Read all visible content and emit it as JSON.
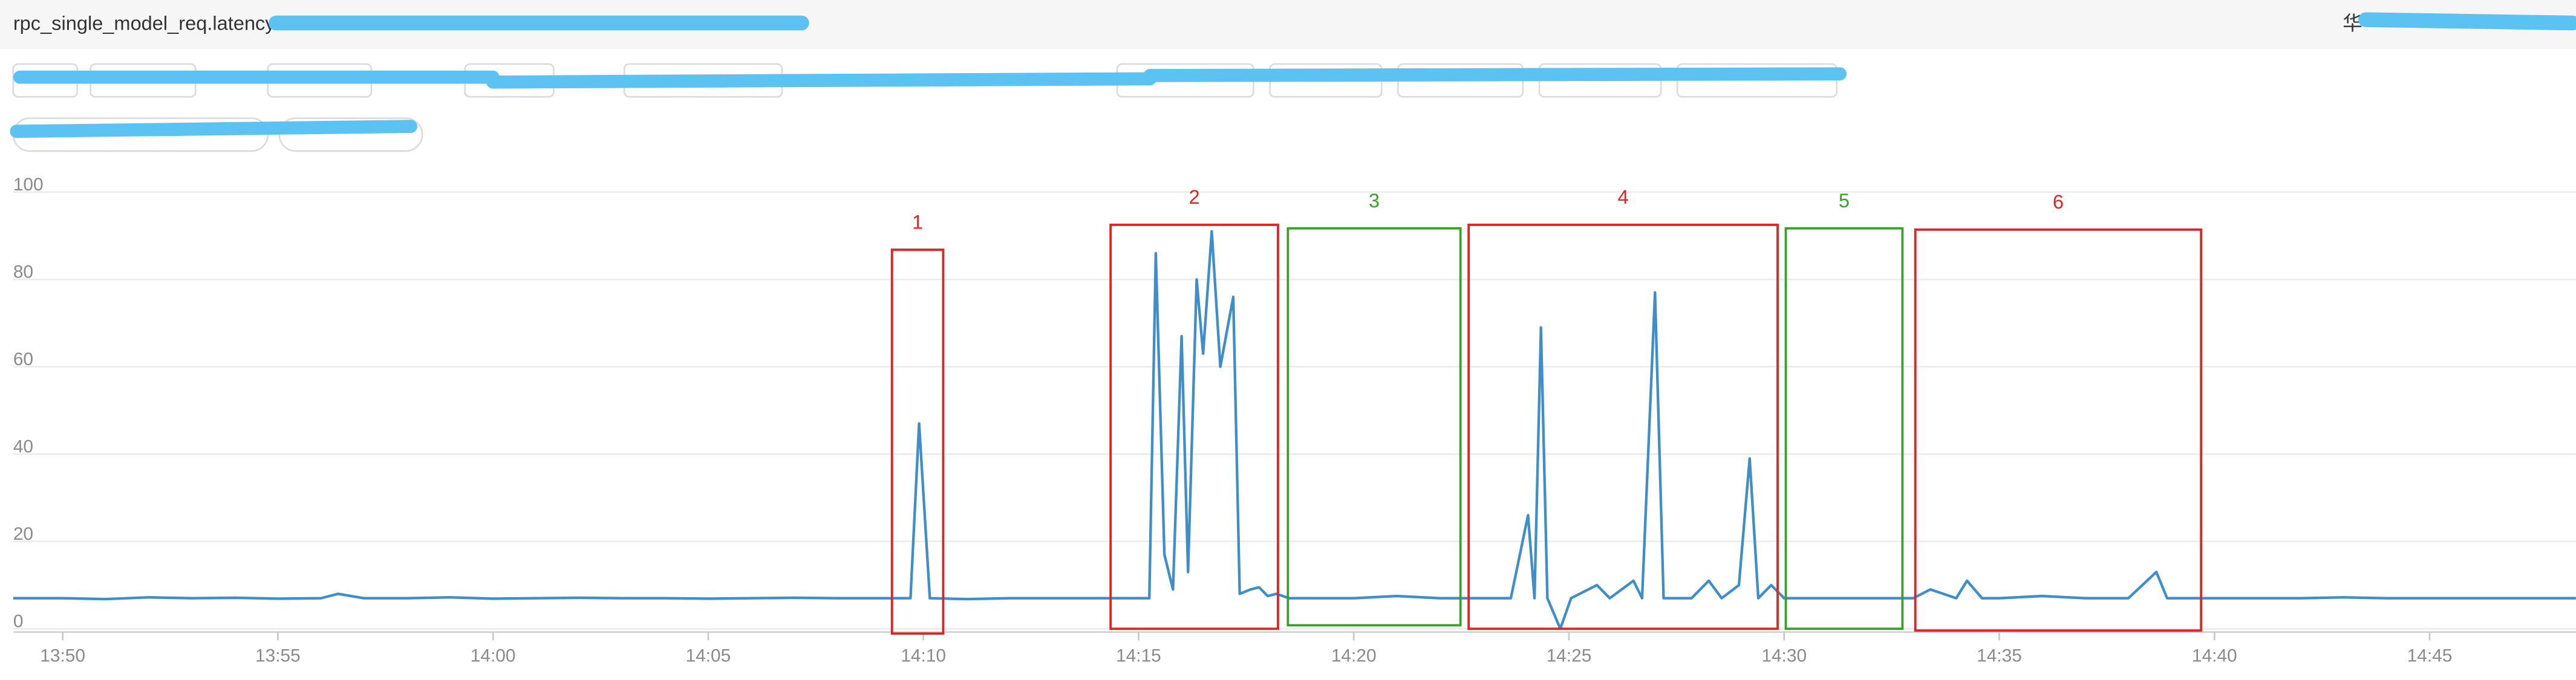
{
  "header": {
    "right_text": "华"
  },
  "chart_data": {
    "type": "line",
    "title": "rpc_single_model_req.latency",
    "color": "#3f8ec9",
    "grid": true,
    "xlim": [
      828.85,
      888.4
    ],
    "ylim": [
      0,
      100
    ],
    "yticks": [
      0,
      20,
      40,
      60,
      80,
      100
    ],
    "xticks": [
      {
        "value": 830,
        "label": "13:50"
      },
      {
        "value": 835,
        "label": "13:55"
      },
      {
        "value": 840,
        "label": "14:00"
      },
      {
        "value": 845,
        "label": "14:05"
      },
      {
        "value": 850,
        "label": "14:10"
      },
      {
        "value": 855,
        "label": "14:15"
      },
      {
        "value": 860,
        "label": "14:20"
      },
      {
        "value": 865,
        "label": "14:25"
      },
      {
        "value": 870,
        "label": "14:30"
      },
      {
        "value": 875,
        "label": "14:35"
      },
      {
        "value": 880,
        "label": "14:40"
      },
      {
        "value": 885,
        "label": "14:45"
      }
    ],
    "x": [
      828.85,
      830,
      831,
      832,
      833,
      834,
      835,
      836,
      836.4,
      837,
      838,
      839,
      840,
      841,
      842,
      843,
      844,
      845,
      846,
      847,
      848,
      849,
      849.7,
      849.9,
      850.15,
      851,
      852,
      853,
      854,
      855,
      855.25,
      855.4,
      855.6,
      855.8,
      856,
      856.15,
      856.35,
      856.5,
      856.7,
      856.9,
      857.2,
      857.35,
      857.6,
      857.8,
      858,
      858.2,
      858.5,
      859,
      860,
      861,
      862,
      863,
      863.65,
      864.05,
      864.2,
      864.35,
      864.5,
      864.8,
      865.05,
      865.25,
      865.65,
      865.95,
      866.5,
      866.7,
      867,
      867.2,
      867.85,
      868.25,
      868.55,
      868.95,
      869.2,
      869.4,
      869.7,
      870,
      871,
      872,
      873,
      873.4,
      874,
      874.25,
      874.6,
      875,
      876,
      877,
      878,
      878.65,
      878.9,
      880,
      881,
      882,
      883,
      884,
      885,
      886,
      887,
      888.4
    ],
    "values": [
      7,
      7,
      6.8,
      7.2,
      7,
      7.1,
      6.9,
      7,
      8,
      7,
      7,
      7.2,
      6.9,
      7,
      7.1,
      7,
      7,
      6.9,
      7,
      7.1,
      7,
      7,
      7,
      47,
      7,
      6.8,
      7,
      7,
      7,
      7,
      7,
      86,
      17,
      9,
      67,
      13,
      80,
      63,
      91,
      60,
      76,
      8,
      9,
      9.5,
      7.5,
      8,
      7,
      7,
      7,
      7.5,
      7,
      7,
      7,
      26,
      7,
      69,
      7,
      0,
      7,
      8,
      10,
      7,
      11,
      7,
      77,
      7,
      7,
      11,
      7,
      10,
      39,
      7,
      10,
      7,
      7,
      7,
      7,
      9,
      7,
      11,
      7,
      7,
      7.5,
      7,
      7,
      13,
      7,
      7,
      7,
      7,
      7.2,
      7,
      7,
      7,
      7,
      7
    ],
    "annotations": [
      {
        "label": "1",
        "color": "#e02424",
        "xrange": [
          849.27,
          850.46
        ],
        "yrange": [
          -1.1,
          86.8
        ]
      },
      {
        "label": "2",
        "color": "#e02424",
        "xrange": [
          854.35,
          858.24
        ],
        "yrange": [
          0,
          92.5
        ]
      },
      {
        "label": "3",
        "color": "#3aa02a",
        "xrange": [
          858.47,
          862.48
        ],
        "yrange": [
          0.8,
          91.7
        ]
      },
      {
        "label": "4",
        "color": "#e02424",
        "xrange": [
          862.67,
          869.85
        ],
        "yrange": [
          0,
          92.5
        ]
      },
      {
        "label": "5",
        "color": "#3aa02a",
        "xrange": [
          870.04,
          872.75
        ],
        "yrange": [
          0,
          91.7
        ]
      },
      {
        "label": "6",
        "color": "#e02424",
        "xrange": [
          873.05,
          879.69
        ],
        "yrange": [
          -0.4,
          91.4
        ]
      }
    ]
  }
}
